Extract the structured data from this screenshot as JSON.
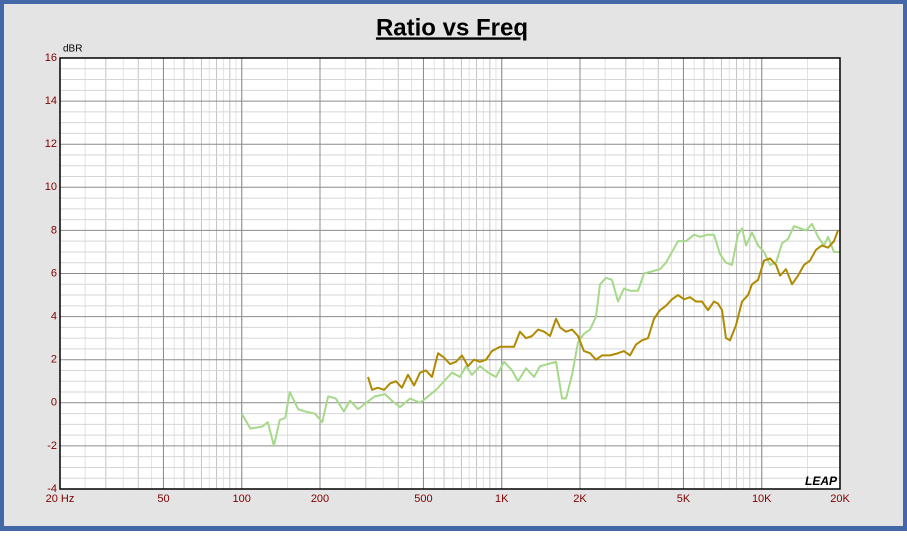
{
  "chart_data": {
    "type": "line",
    "title": "Ratio vs Freq",
    "y_label": "dBR",
    "watermark": "LEAP",
    "log_x": true,
    "grid": true,
    "xlim": [
      20,
      20000
    ],
    "ylim": [
      -4,
      16
    ],
    "xticks": [
      {
        "value": 20,
        "label": "20 Hz"
      },
      50,
      100,
      200,
      500,
      {
        "value": 1000,
        "label": "1K"
      },
      {
        "value": 2000,
        "label": "2K"
      },
      {
        "value": 5000,
        "label": "5K"
      },
      {
        "value": 10000,
        "label": "10K"
      },
      {
        "value": 20000,
        "label": "20K"
      }
    ],
    "yticks": [
      -4,
      -2,
      0,
      2,
      4,
      6,
      8,
      10,
      12,
      14,
      16
    ],
    "series": [
      {
        "color": "#a6d98a",
        "x": [
          100,
          108,
          120,
          126,
          133,
          140,
          147,
          153,
          165,
          175,
          191,
          204,
          215,
          230,
          247,
          261,
          280,
          301,
          325,
          356,
          378,
          406,
          444,
          485,
          521,
          559,
          600,
          644,
          691,
          729,
          768,
          825,
          886,
          951,
          1021,
          1096,
          1155,
          1240,
          1332,
          1404,
          1508,
          1618,
          1706,
          1767,
          1864,
          1965,
          2071,
          2186,
          2304,
          2388,
          2518,
          2655,
          2800,
          2952,
          3114,
          3344,
          3525,
          3784,
          4062,
          4283,
          4516,
          4764,
          5114,
          5490,
          5788,
          6213,
          6551,
          6909,
          7286,
          7683,
          8105,
          8399,
          8701,
          9174,
          9677,
          10208,
          10764,
          11351,
          11969,
          12619,
          13310,
          14037,
          14803,
          15609,
          16464,
          17362,
          17986,
          18966,
          20000
        ],
        "values": [
          -0.5,
          -1.2,
          -1.1,
          -0.9,
          -2.0,
          -0.8,
          -0.7,
          0.5,
          -0.3,
          -0.4,
          -0.5,
          -0.9,
          0.3,
          0.2,
          -0.4,
          0.1,
          -0.3,
          0.0,
          0.3,
          0.4,
          0.1,
          -0.2,
          0.2,
          0.0,
          0.3,
          0.6,
          1.0,
          1.4,
          1.2,
          1.7,
          1.3,
          1.7,
          1.4,
          1.2,
          1.9,
          1.5,
          1.0,
          1.6,
          1.2,
          1.7,
          1.8,
          1.9,
          0.2,
          0.2,
          1.3,
          2.8,
          3.2,
          3.4,
          4.0,
          5.5,
          5.8,
          5.7,
          4.7,
          5.3,
          5.2,
          5.2,
          6.0,
          6.1,
          6.2,
          6.5,
          7.0,
          7.5,
          7.5,
          7.8,
          7.7,
          7.8,
          7.8,
          6.9,
          6.5,
          6.4,
          7.8,
          8.1,
          7.3,
          7.9,
          7.3,
          7.0,
          6.4,
          6.5,
          7.4,
          7.6,
          8.2,
          8.1,
          8.0,
          8.3,
          7.7,
          7.3,
          7.7,
          7.0,
          7.0
        ]
      },
      {
        "color": "#b08a00",
        "x": [
          306,
          317,
          334,
          353,
          372,
          392,
          413,
          436,
          460,
          485,
          511,
          539,
          569,
          600,
          632,
          667,
          703,
          742,
          782,
          825,
          870,
          917,
          985,
          1057,
          1115,
          1175,
          1240,
          1308,
          1380,
          1455,
          1534,
          1618,
          1676,
          1767,
          1864,
          1965,
          2071,
          2186,
          2304,
          2430,
          2610,
          2800,
          2952,
          3114,
          3284,
          3464,
          3652,
          3852,
          4062,
          4283,
          4516,
          4764,
          5024,
          5298,
          5588,
          5893,
          6213,
          6551,
          6790,
          7037,
          7286,
          7552,
          7962,
          8399,
          8858,
          9174,
          9677,
          10208,
          10764,
          11351,
          11756,
          12397,
          13076,
          13790,
          14542,
          15335,
          16172,
          17052,
          17986,
          18966,
          19645
        ],
        "values": [
          1.2,
          0.6,
          0.7,
          0.6,
          0.9,
          1.0,
          0.7,
          1.3,
          0.8,
          1.4,
          1.5,
          1.2,
          2.3,
          2.1,
          1.8,
          1.9,
          2.2,
          1.7,
          2.0,
          1.9,
          2.0,
          2.4,
          2.6,
          2.6,
          2.6,
          3.3,
          3.0,
          3.1,
          3.4,
          3.3,
          3.1,
          3.9,
          3.5,
          3.3,
          3.4,
          3.1,
          2.4,
          2.3,
          2.0,
          2.2,
          2.2,
          2.3,
          2.4,
          2.2,
          2.7,
          2.9,
          3.0,
          3.9,
          4.3,
          4.5,
          4.8,
          5.0,
          4.8,
          4.9,
          4.7,
          4.7,
          4.3,
          4.7,
          4.6,
          4.3,
          3.0,
          2.9,
          3.6,
          4.7,
          5.0,
          5.5,
          5.7,
          6.6,
          6.7,
          6.4,
          5.9,
          6.2,
          5.5,
          5.9,
          6.4,
          6.6,
          7.1,
          7.3,
          7.2,
          7.5,
          8.0
        ]
      }
    ]
  }
}
